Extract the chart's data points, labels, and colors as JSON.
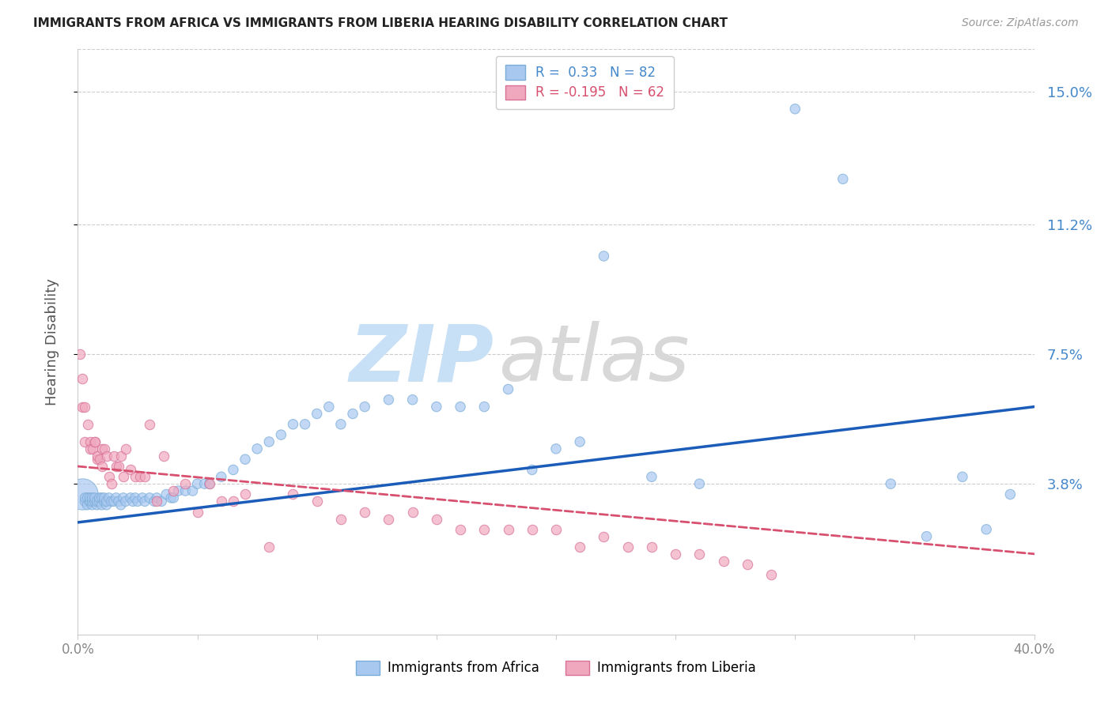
{
  "title": "IMMIGRANTS FROM AFRICA VS IMMIGRANTS FROM LIBERIA HEARING DISABILITY CORRELATION CHART",
  "source": "Source: ZipAtlas.com",
  "ylabel": "Hearing Disability",
  "legend_africa": "Immigrants from Africa",
  "legend_liberia": "Immigrants from Liberia",
  "r_africa": 0.33,
  "n_africa": 82,
  "r_liberia": -0.195,
  "n_liberia": 62,
  "xlim": [
    0.0,
    0.4
  ],
  "ylim": [
    -0.005,
    0.162
  ],
  "ytick_vals": [
    0.038,
    0.075,
    0.112,
    0.15
  ],
  "ytick_labels": [
    "3.8%",
    "7.5%",
    "11.2%",
    "15.0%"
  ],
  "color_africa": "#a8c8f0",
  "color_africa_edge": "#7aacd8",
  "color_liberia": "#f0a8be",
  "color_liberia_edge": "#d87098",
  "line_africa": "#1a5cb8",
  "line_liberia": "#d85070",
  "background": "#ffffff",
  "grid_color": "#cccccc",
  "tick_color": "#888888",
  "y_label_color": "#4488cc",
  "title_color": "#222222",
  "source_color": "#999999",
  "africa_x": [
    0.002,
    0.003,
    0.003,
    0.004,
    0.004,
    0.005,
    0.005,
    0.005,
    0.006,
    0.006,
    0.006,
    0.007,
    0.007,
    0.008,
    0.008,
    0.009,
    0.009,
    0.01,
    0.01,
    0.011,
    0.011,
    0.012,
    0.012,
    0.013,
    0.014,
    0.015,
    0.016,
    0.017,
    0.018,
    0.019,
    0.02,
    0.022,
    0.023,
    0.024,
    0.025,
    0.027,
    0.028,
    0.03,
    0.032,
    0.033,
    0.035,
    0.037,
    0.039,
    0.04,
    0.042,
    0.045,
    0.048,
    0.05,
    0.053,
    0.055,
    0.06,
    0.065,
    0.07,
    0.075,
    0.08,
    0.085,
    0.09,
    0.095,
    0.1,
    0.105,
    0.11,
    0.115,
    0.12,
    0.13,
    0.14,
    0.15,
    0.16,
    0.17,
    0.18,
    0.19,
    0.2,
    0.21,
    0.22,
    0.24,
    0.26,
    0.3,
    0.32,
    0.34,
    0.355,
    0.37,
    0.38,
    0.39
  ],
  "africa_y": [
    0.035,
    0.033,
    0.034,
    0.032,
    0.034,
    0.033,
    0.033,
    0.034,
    0.032,
    0.033,
    0.034,
    0.033,
    0.034,
    0.032,
    0.033,
    0.033,
    0.034,
    0.032,
    0.034,
    0.033,
    0.034,
    0.032,
    0.033,
    0.034,
    0.033,
    0.033,
    0.034,
    0.033,
    0.032,
    0.034,
    0.033,
    0.034,
    0.033,
    0.034,
    0.033,
    0.034,
    0.033,
    0.034,
    0.033,
    0.034,
    0.033,
    0.035,
    0.034,
    0.034,
    0.036,
    0.036,
    0.036,
    0.038,
    0.038,
    0.038,
    0.04,
    0.042,
    0.045,
    0.048,
    0.05,
    0.052,
    0.055,
    0.055,
    0.058,
    0.06,
    0.055,
    0.058,
    0.06,
    0.062,
    0.062,
    0.06,
    0.06,
    0.06,
    0.065,
    0.042,
    0.048,
    0.05,
    0.103,
    0.04,
    0.038,
    0.145,
    0.125,
    0.038,
    0.023,
    0.04,
    0.025,
    0.035
  ],
  "africa_sizes": [
    150,
    80,
    80,
    80,
    80,
    80,
    80,
    80,
    80,
    80,
    80,
    80,
    80,
    80,
    80,
    80,
    80,
    80,
    80,
    80,
    80,
    80,
    80,
    80,
    80,
    80,
    80,
    80,
    80,
    80,
    80,
    80,
    80,
    80,
    80,
    80,
    80,
    80,
    80,
    80,
    80,
    80,
    80,
    80,
    80,
    80,
    80,
    80,
    80,
    80,
    80,
    80,
    80,
    80,
    80,
    80,
    80,
    80,
    80,
    80,
    80,
    80,
    80,
    80,
    80,
    80,
    80,
    80,
    80,
    80,
    80,
    80,
    80,
    80,
    80,
    80,
    80,
    80,
    80,
    80,
    80,
    80
  ],
  "liberia_x": [
    0.001,
    0.002,
    0.002,
    0.003,
    0.003,
    0.004,
    0.005,
    0.005,
    0.006,
    0.007,
    0.007,
    0.008,
    0.008,
    0.009,
    0.01,
    0.01,
    0.011,
    0.012,
    0.013,
    0.014,
    0.015,
    0.016,
    0.017,
    0.018,
    0.019,
    0.02,
    0.022,
    0.024,
    0.026,
    0.028,
    0.03,
    0.033,
    0.036,
    0.04,
    0.045,
    0.05,
    0.055,
    0.06,
    0.065,
    0.07,
    0.08,
    0.09,
    0.1,
    0.11,
    0.12,
    0.13,
    0.14,
    0.15,
    0.16,
    0.17,
    0.18,
    0.19,
    0.2,
    0.21,
    0.22,
    0.23,
    0.24,
    0.25,
    0.26,
    0.27,
    0.28,
    0.29
  ],
  "liberia_y": [
    0.075,
    0.068,
    0.06,
    0.06,
    0.05,
    0.055,
    0.05,
    0.048,
    0.048,
    0.05,
    0.05,
    0.045,
    0.046,
    0.045,
    0.043,
    0.048,
    0.048,
    0.046,
    0.04,
    0.038,
    0.046,
    0.043,
    0.043,
    0.046,
    0.04,
    0.048,
    0.042,
    0.04,
    0.04,
    0.04,
    0.055,
    0.033,
    0.046,
    0.036,
    0.038,
    0.03,
    0.038,
    0.033,
    0.033,
    0.035,
    0.02,
    0.035,
    0.033,
    0.028,
    0.03,
    0.028,
    0.03,
    0.028,
    0.025,
    0.025,
    0.025,
    0.025,
    0.025,
    0.02,
    0.023,
    0.02,
    0.02,
    0.018,
    0.018,
    0.016,
    0.015,
    0.012
  ],
  "line_africa_x0": 0.0,
  "line_africa_x1": 0.4,
  "line_africa_y0": 0.027,
  "line_africa_y1": 0.06,
  "line_liberia_x0": 0.0,
  "line_liberia_x1": 0.4,
  "line_liberia_y0": 0.043,
  "line_liberia_y1": 0.018
}
